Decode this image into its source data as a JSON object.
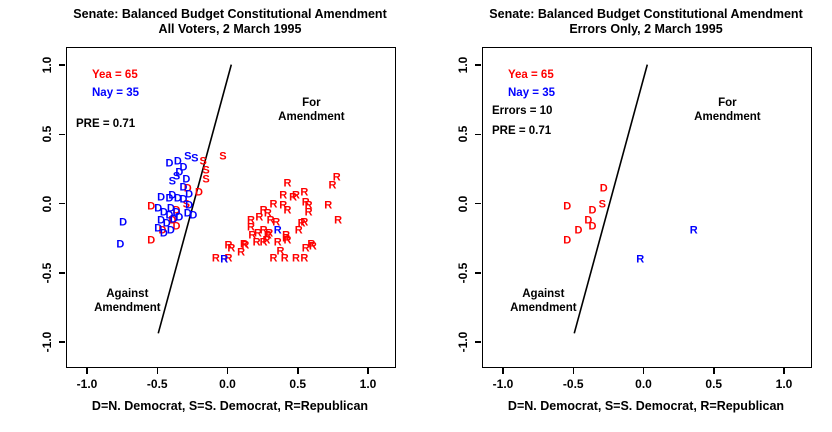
{
  "page": {
    "background": "#ffffff",
    "accent_red": "#ff0000",
    "accent_blue": "#0000ff"
  },
  "chart_data": [
    {
      "type": "scatter",
      "title": "Senate: Balanced Budget Constitutional Amendment",
      "subtitle": "All Voters, 2 March 1995",
      "xlabel": "D=N. Democrat, S=S. Democrat, R=Republican",
      "xlim": [
        -1.0,
        1.0
      ],
      "ylim": [
        -1.0,
        1.0
      ],
      "grid": false,
      "xticks": [
        "-1.0",
        "-0.5",
        "0.0",
        "0.5",
        "1.0"
      ],
      "xtick_values": [
        -1,
        -0.5,
        0,
        0.5,
        1
      ],
      "yticks": [
        "1.0",
        "0.5",
        "0.0",
        "-0.5",
        "-1.0"
      ],
      "ytick_values": [
        1,
        0.5,
        0,
        -0.5,
        -1
      ],
      "stats": [
        {
          "kind": "yea",
          "text": "Yea =  65",
          "color": "#ff0000"
        },
        {
          "kind": "nay",
          "text": "Nay =  35",
          "color": "#0000ff"
        },
        {
          "kind": "pre",
          "text": "PRE =  0.71",
          "color": "#000000"
        }
      ],
      "cutting_line": {
        "x1": -0.5,
        "y1": -0.93,
        "x2": 0.02,
        "y2": 1.01,
        "color": "#000000"
      },
      "region_labels": [
        {
          "text": "For Amendment",
          "x": 0.59,
          "y": 0.68
        },
        {
          "text": "Against\nAmendment",
          "x": -0.72,
          "y": -0.7
        }
      ],
      "series": [
        {
          "name": "Yea",
          "color": "#ff0000",
          "points": [
            [
              "D",
              -0.29,
              0.11
            ],
            [
              "D",
              -0.37,
              -0.05
            ],
            [
              "D",
              -0.55,
              -0.02
            ],
            [
              "D",
              -0.37,
              -0.16
            ],
            [
              "D",
              -0.47,
              -0.19
            ],
            [
              "D",
              -0.55,
              -0.26
            ],
            [
              "D",
              -0.4,
              -0.12
            ],
            [
              "D",
              -0.21,
              0.08
            ],
            [
              "S",
              -0.18,
              0.31
            ],
            [
              "S",
              -0.04,
              0.34
            ],
            [
              "S",
              -0.16,
              0.24
            ],
            [
              "S",
              -0.16,
              0.18
            ],
            [
              "S",
              -0.3,
              0.0
            ],
            [
              "R",
              0.42,
              0.15
            ],
            [
              "R",
              0.77,
              0.19
            ],
            [
              "R",
              0.74,
              0.13
            ],
            [
              "R",
              0.39,
              0.06
            ],
            [
              "R",
              0.48,
              0.06
            ],
            [
              "R",
              0.54,
              0.08
            ],
            [
              "R",
              0.55,
              0.01
            ],
            [
              "R",
              0.71,
              -0.01
            ],
            [
              "R",
              0.57,
              -0.06
            ],
            [
              "R",
              0.78,
              -0.12
            ],
            [
              "R",
              0.54,
              -0.13
            ],
            [
              "R",
              0.16,
              -0.17
            ],
            [
              "R",
              0.21,
              -0.21
            ],
            [
              "R",
              0.27,
              -0.26
            ],
            [
              "R",
              0.28,
              -0.23
            ],
            [
              "R",
              0.12,
              -0.3
            ],
            [
              "R",
              0.02,
              -0.32
            ],
            [
              "R",
              0.0,
              -0.39
            ],
            [
              "R",
              0.41,
              -0.25
            ],
            [
              "R",
              0.59,
              -0.29
            ],
            [
              "R",
              0.55,
              -0.32
            ],
            [
              "R",
              0.37,
              -0.34
            ],
            [
              "R",
              0.32,
              -0.39
            ],
            [
              "R",
              0.4,
              -0.39
            ],
            [
              "R",
              0.54,
              -0.39
            ],
            [
              "R",
              -0.09,
              -0.39
            ],
            [
              "R",
              0.0,
              -0.3
            ],
            [
              "R",
              0.11,
              -0.29
            ],
            [
              "R",
              0.2,
              -0.28
            ],
            [
              "R",
              0.25,
              -0.28
            ],
            [
              "R",
              0.42,
              -0.26
            ],
            [
              "R",
              0.48,
              -0.39
            ],
            [
              "R",
              0.6,
              -0.31
            ],
            [
              "R",
              0.46,
              0.05
            ],
            [
              "R",
              0.32,
              0.0
            ],
            [
              "R",
              0.39,
              -0.01
            ],
            [
              "R",
              0.42,
              -0.05
            ],
            [
              "R",
              0.57,
              -0.01
            ],
            [
              "R",
              0.25,
              -0.05
            ],
            [
              "R",
              0.28,
              -0.07
            ],
            [
              "R",
              0.22,
              -0.1
            ],
            [
              "R",
              0.3,
              -0.12
            ],
            [
              "R",
              0.34,
              -0.13
            ],
            [
              "R",
              0.25,
              -0.19
            ],
            [
              "R",
              0.29,
              -0.21
            ],
            [
              "R",
              0.41,
              -0.23
            ],
            [
              "R",
              0.52,
              -0.14
            ],
            [
              "R",
              0.16,
              -0.12
            ],
            [
              "R",
              0.09,
              -0.35
            ],
            [
              "R",
              0.35,
              -0.28
            ],
            [
              "R",
              0.5,
              -0.19
            ],
            [
              "R",
              0.17,
              -0.23
            ]
          ]
        },
        {
          "name": "Nay",
          "color": "#0000ff",
          "points": [
            [
              "D",
              -0.75,
              -0.13
            ],
            [
              "D",
              -0.77,
              -0.29
            ],
            [
              "D",
              -0.48,
              0.05
            ],
            [
              "D",
              -0.42,
              0.04
            ],
            [
              "D",
              -0.36,
              0.04
            ],
            [
              "D",
              -0.32,
              0.03
            ],
            [
              "D",
              -0.5,
              -0.03
            ],
            [
              "D",
              -0.46,
              -0.06
            ],
            [
              "D",
              -0.41,
              -0.03
            ],
            [
              "D",
              -0.42,
              -0.08
            ],
            [
              "D",
              -0.37,
              -0.06
            ],
            [
              "D",
              -0.48,
              -0.12
            ],
            [
              "D",
              -0.44,
              -0.14
            ],
            [
              "D",
              -0.39,
              -0.11
            ],
            [
              "D",
              -0.35,
              -0.1
            ],
            [
              "D",
              -0.46,
              -0.21
            ],
            [
              "D",
              -0.41,
              -0.19
            ],
            [
              "D",
              -0.5,
              -0.18
            ],
            [
              "D",
              -0.4,
              0.06
            ],
            [
              "D",
              -0.28,
              -0.01
            ],
            [
              "D",
              -0.29,
              -0.07
            ],
            [
              "D",
              -0.25,
              -0.08
            ],
            [
              "D",
              -0.36,
              0.31
            ],
            [
              "D",
              -0.32,
              0.26
            ],
            [
              "D",
              -0.32,
              0.12
            ],
            [
              "D",
              -0.28,
              0.07
            ],
            [
              "D",
              -0.42,
              0.29
            ],
            [
              "D",
              -0.35,
              0.23
            ],
            [
              "D",
              -0.3,
              0.18
            ],
            [
              "S",
              -0.29,
              0.34
            ],
            [
              "S",
              -0.24,
              0.33
            ],
            [
              "S",
              -0.4,
              0.16
            ],
            [
              "S",
              -0.37,
              0.2
            ],
            [
              "R",
              0.35,
              -0.19
            ],
            [
              "R",
              -0.03,
              -0.4
            ]
          ]
        }
      ]
    },
    {
      "type": "scatter",
      "title": "Senate: Balanced Budget Constitutional Amendment",
      "subtitle": "Errors Only, 2 March 1995",
      "xlabel": "D=N. Democrat, S=S. Democrat, R=Republican",
      "xlim": [
        -1.0,
        1.0
      ],
      "ylim": [
        -1.0,
        1.0
      ],
      "grid": false,
      "xticks": [
        "-1.0",
        "-0.5",
        "0.0",
        "0.5",
        "1.0"
      ],
      "xtick_values": [
        -1,
        -0.5,
        0,
        0.5,
        1
      ],
      "yticks": [
        "1.0",
        "0.5",
        "0.0",
        "-0.5",
        "-1.0"
      ],
      "ytick_values": [
        1,
        0.5,
        0,
        -0.5,
        -1
      ],
      "stats": [
        {
          "kind": "yea",
          "text": "Yea =  65",
          "color": "#ff0000"
        },
        {
          "kind": "nay",
          "text": "Nay =  35",
          "color": "#0000ff"
        },
        {
          "kind": "errors",
          "text": "Errors =  10",
          "color": "#000000"
        },
        {
          "kind": "pre",
          "text": "PRE =  0.71",
          "color": "#000000"
        }
      ],
      "cutting_line": {
        "x1": -0.5,
        "y1": -0.93,
        "x2": 0.02,
        "y2": 1.01,
        "color": "#000000"
      },
      "region_labels": [
        {
          "text": "For Amendment",
          "x": 0.59,
          "y": 0.68
        },
        {
          "text": "Against\nAmendment",
          "x": -0.72,
          "y": -0.7
        }
      ],
      "series": [
        {
          "name": "Yea errors",
          "color": "#ff0000",
          "points": [
            [
              "D",
              -0.29,
              0.11
            ],
            [
              "S",
              -0.3,
              0.0
            ],
            [
              "D",
              -0.37,
              -0.05
            ],
            [
              "D",
              -0.55,
              -0.02
            ],
            [
              "D",
              -0.4,
              -0.12
            ],
            [
              "D",
              -0.37,
              -0.16
            ],
            [
              "D",
              -0.47,
              -0.19
            ],
            [
              "D",
              -0.55,
              -0.26
            ]
          ]
        },
        {
          "name": "Nay errors",
          "color": "#0000ff",
          "points": [
            [
              "R",
              0.35,
              -0.19
            ],
            [
              "R",
              -0.03,
              -0.4
            ]
          ]
        }
      ]
    }
  ]
}
